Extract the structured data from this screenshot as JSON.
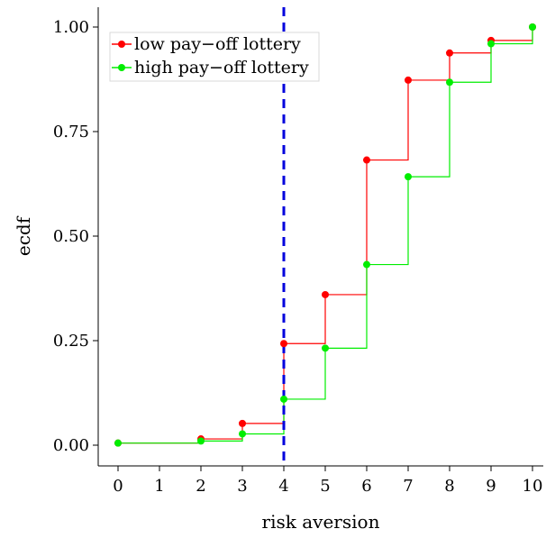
{
  "chart_data": {
    "type": "line",
    "subtype": "step-ecdf",
    "title": "",
    "xlabel": "risk aversion",
    "ylabel": "ecdf",
    "xlim": [
      -0.5,
      10.5
    ],
    "ylim": [
      -0.02,
      1.03
    ],
    "x_ticks": [
      "0",
      "1",
      "2",
      "3",
      "4",
      "5",
      "6",
      "7",
      "8",
      "9",
      "10"
    ],
    "y_ticks": [
      "0.00",
      "0.25",
      "0.50",
      "0.75",
      "1.00"
    ],
    "grid": false,
    "legend_position": "top-left",
    "series": [
      {
        "name": "low pay−off lottery",
        "color": "#ff0000",
        "x": [
          0,
          2,
          3,
          4,
          5,
          6,
          7,
          8,
          9,
          10
        ],
        "y": [
          0.005,
          0.015,
          0.052,
          0.243,
          0.36,
          0.682,
          0.873,
          0.938,
          0.968,
          1.0
        ]
      },
      {
        "name": "high pay−off lottery",
        "color": "#00ee00",
        "x": [
          0,
          2,
          3,
          4,
          5,
          6,
          7,
          8,
          9,
          10
        ],
        "y": [
          0.005,
          0.01,
          0.027,
          0.11,
          0.232,
          0.432,
          0.642,
          0.868,
          0.96,
          1.0
        ]
      }
    ],
    "reference_line": {
      "axis": "x",
      "value": 4,
      "style": "dashed",
      "color": "#0000dd"
    }
  }
}
